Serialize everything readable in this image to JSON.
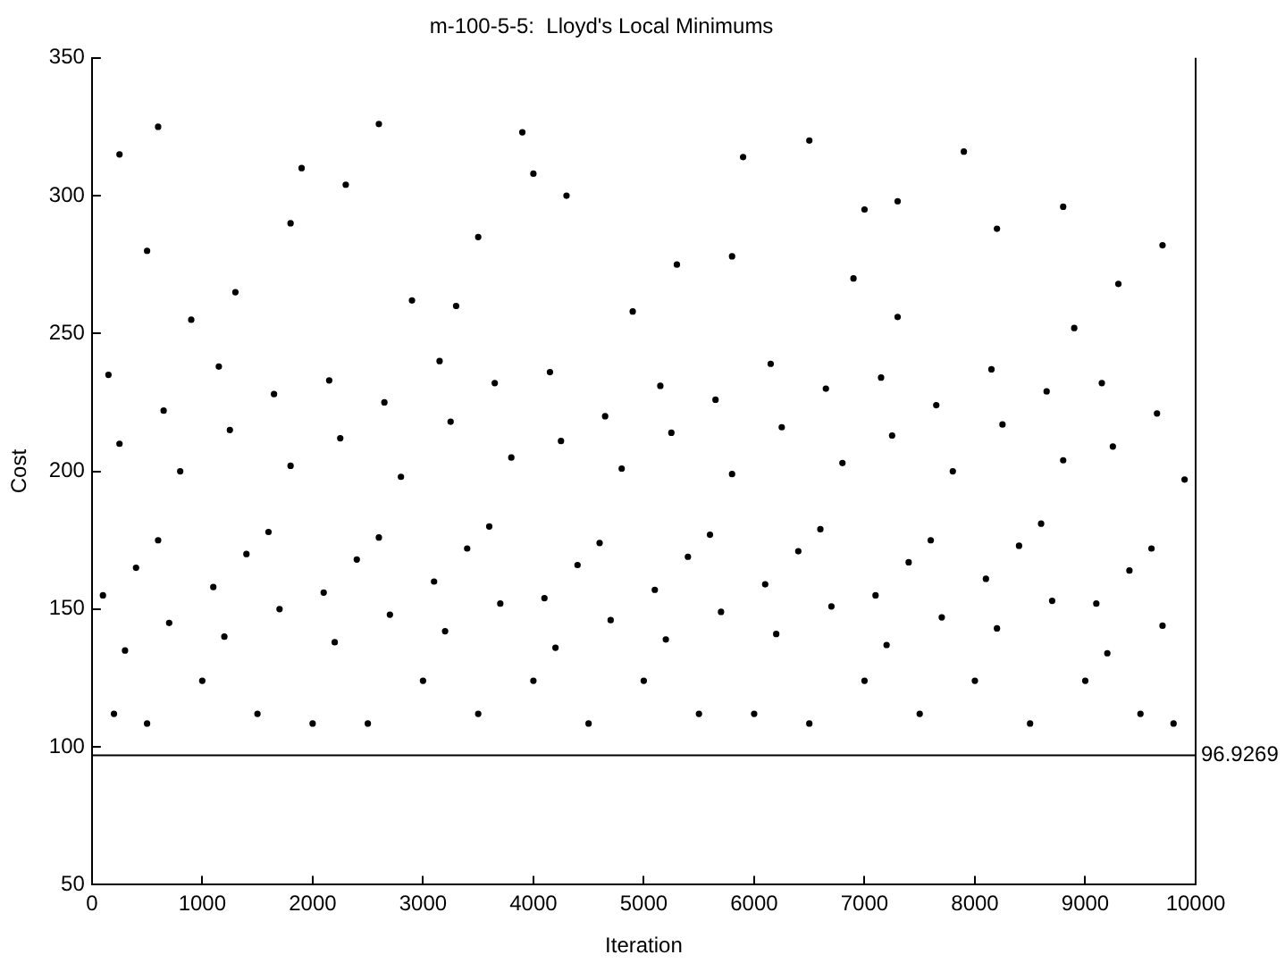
{
  "chart_data": {
    "type": "scatter",
    "title": "m-100-5-5:  Lloyd's Local Minimums",
    "xlabel": "Iteration",
    "ylabel": "Cost",
    "xlim": [
      0,
      10000
    ],
    "xticks": [
      0,
      1000,
      2000,
      3000,
      4000,
      5000,
      6000,
      7000,
      8000,
      9000,
      10000
    ],
    "ylim": [
      50,
      350
    ],
    "yticks": [
      50,
      100,
      150,
      200,
      250,
      300,
      350
    ],
    "grid": false,
    "legend": false,
    "marker": "circle",
    "series": [
      {
        "color": "#000000",
        "x": [
          500,
          2500,
          4500,
          6500,
          8500,
          1500,
          3500,
          5500,
          7500,
          9500,
          1000,
          3000,
          5000,
          7000,
          9000,
          200,
          2000,
          4000,
          6000,
          8000,
          9800,
          300,
          1200,
          2200,
          3200,
          4200,
          5200,
          6200,
          7200,
          8200,
          9200,
          700,
          1700,
          2700,
          3700,
          4700,
          5700,
          6700,
          7700,
          8700,
          9700,
          100,
          1100,
          2100,
          3100,
          4100,
          5100,
          6100,
          7100,
          8100,
          9100,
          400,
          1400,
          2400,
          3400,
          4400,
          5400,
          6400,
          7400,
          8400,
          9400,
          600,
          1600,
          2600,
          3600,
          4600,
          5600,
          6600,
          7600,
          8600,
          9600,
          800,
          1800,
          2800,
          3800,
          4800,
          5800,
          6800,
          7800,
          8800,
          9900,
          250,
          1250,
          2250,
          3250,
          4250,
          5250,
          6250,
          7250,
          8250,
          9250,
          650,
          1650,
          2650,
          3650,
          4650,
          5650,
          6650,
          7650,
          8650,
          9650,
          150,
          1150,
          2150,
          3150,
          4150,
          5150,
          6150,
          7150,
          8150,
          9150,
          900,
          2900,
          4900,
          6900,
          8900,
          1300,
          3300,
          5300,
          7300,
          9300,
          500,
          1800,
          3500,
          4300,
          5800,
          7000,
          8200,
          9700,
          250,
          2600,
          4000,
          6500,
          1900,
          3900,
          5900,
          7900,
          600,
          2300,
          7300,
          8800
        ],
        "values": [
          108.5,
          108.5,
          108.5,
          108.5,
          108.5,
          112,
          112,
          112,
          112,
          112,
          124,
          124,
          124,
          124,
          124,
          112,
          108.5,
          124,
          112,
          124,
          108.5,
          135,
          140,
          138,
          142,
          136,
          139,
          141,
          137,
          143,
          134,
          145,
          150,
          148,
          152,
          146,
          149,
          151,
          147,
          153,
          144,
          155,
          158,
          156,
          160,
          154,
          157,
          159,
          155,
          161,
          152,
          165,
          170,
          168,
          172,
          166,
          169,
          171,
          167,
          173,
          164,
          175,
          178,
          176,
          180,
          174,
          177,
          179,
          175,
          181,
          172,
          200,
          202,
          198,
          205,
          201,
          199,
          203,
          200,
          204,
          197,
          210,
          215,
          212,
          218,
          211,
          214,
          216,
          213,
          217,
          209,
          222,
          228,
          225,
          232,
          220,
          226,
          230,
          224,
          229,
          221,
          235,
          238,
          233,
          240,
          236,
          231,
          239,
          234,
          237,
          232,
          255,
          262,
          258,
          270,
          252,
          265,
          260,
          275,
          256,
          268,
          280,
          290,
          285,
          300,
          278,
          295,
          288,
          282,
          315,
          326,
          308,
          320,
          310,
          323,
          314,
          316,
          325,
          304,
          298,
          296
        ]
      }
    ],
    "ref_lines": [
      {
        "axis": "y",
        "value": 96.9269,
        "label": "96.9269",
        "color": "#000000"
      }
    ]
  }
}
